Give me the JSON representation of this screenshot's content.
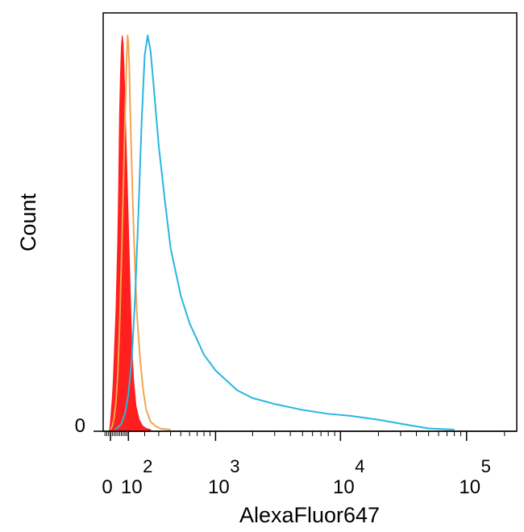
{
  "chart_data": {
    "type": "area",
    "title": "",
    "xlabel": "AlexaFluor647",
    "ylabel": "Count",
    "x_scale": "biexponential",
    "x_ticks": [
      {
        "value": 0,
        "base": "0",
        "exp": ""
      },
      {
        "value": 100,
        "base": "10",
        "exp": "2"
      },
      {
        "value": 1000,
        "base": "10",
        "exp": "3"
      },
      {
        "value": 10000,
        "base": "10",
        "exp": "4"
      },
      {
        "value": 100000,
        "base": "10",
        "exp": "5"
      }
    ],
    "y_ticks": [
      {
        "value": 0,
        "label": "0"
      }
    ],
    "xlim": [
      -40,
      250000
    ],
    "ylim": [
      0,
      100
    ],
    "grid": false,
    "legend": "none",
    "series": [
      {
        "color": "#ff1f1f",
        "fill": true,
        "x": [
          -5,
          0,
          5,
          10,
          15,
          20,
          30,
          40,
          45,
          50,
          55,
          60,
          65,
          70,
          75,
          80,
          90,
          100,
          110,
          120,
          130,
          145,
          165,
          185,
          210,
          240
        ],
        "y": [
          0,
          2,
          5,
          8,
          12,
          18,
          30,
          48,
          62,
          80,
          90,
          97,
          100,
          98,
          92,
          84,
          68,
          52,
          36,
          22,
          13,
          6,
          2.5,
          1,
          0.3,
          0
        ]
      },
      {
        "color": "#f3a451",
        "fill": false,
        "x": [
          0,
          10,
          20,
          30,
          40,
          50,
          60,
          70,
          80,
          90,
          95,
          100,
          105,
          110,
          120,
          130,
          140,
          150,
          170,
          190,
          210,
          240,
          280,
          320,
          400
        ],
        "y": [
          0,
          1,
          3,
          7,
          14,
          26,
          42,
          60,
          78,
          94,
          100,
          98,
          92,
          82,
          66,
          52,
          40,
          30,
          18,
          10,
          5,
          2,
          0.8,
          0.2,
          0
        ]
      },
      {
        "color": "#29b6e0",
        "fill": false,
        "x": [
          25,
          40,
          60,
          80,
          100,
          120,
          140,
          160,
          180,
          200,
          220,
          240,
          260,
          300,
          350,
          400,
          500,
          600,
          800,
          1000,
          1500,
          2000,
          3000,
          5000,
          8000,
          12000,
          20000,
          30000,
          50000,
          80000
        ],
        "y": [
          0,
          0.5,
          1.5,
          4,
          9,
          18,
          34,
          55,
          78,
          95,
          100,
          96,
          88,
          72,
          58,
          46,
          34,
          27,
          19,
          15,
          10,
          8,
          6.5,
          5,
          4,
          3.5,
          2.5,
          1.5,
          0.3,
          0
        ]
      }
    ]
  }
}
